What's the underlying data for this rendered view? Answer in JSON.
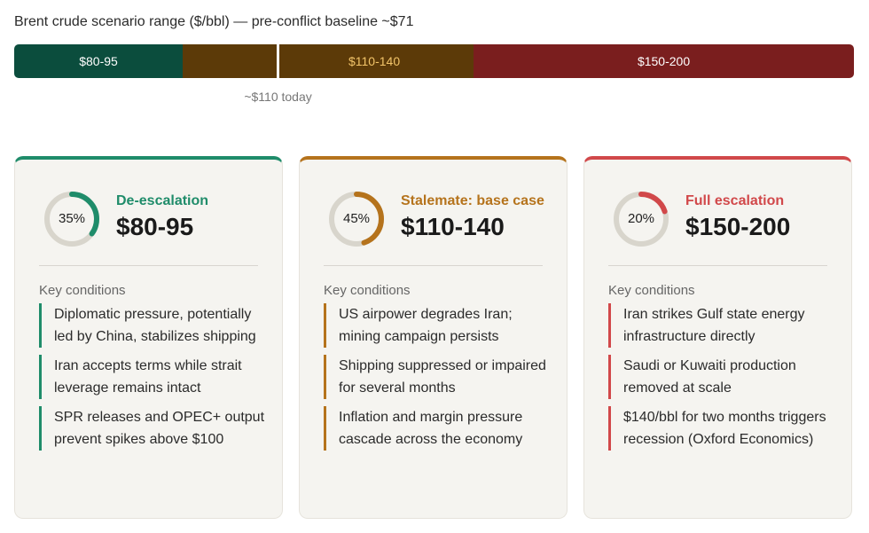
{
  "chart_data": {
    "type": "bar",
    "title": "Brent crude scenario range ($/bbl) — pre-conflict baseline ~$71",
    "segments": [
      {
        "label": "$80-95",
        "color": "#0b4d3d",
        "fraction": 0.2007
      },
      {
        "label": "",
        "color": "#5c3a08",
        "fraction": 0.1098
      },
      {
        "label": "$110-140",
        "color": "#5c3a08",
        "fraction": 0.2366
      },
      {
        "label": "$150-200",
        "color": "#7a1e1e",
        "fraction": 0.4529
      }
    ],
    "today_marker": {
      "label": "~$110 today",
      "fraction": 0.3142
    }
  },
  "conditions_heading": "Key conditions",
  "scenarios": [
    {
      "name": "De-escalation",
      "range": "$80-95",
      "probability": 35,
      "probability_label": "35%",
      "color": "#1f8c6a",
      "conditions": [
        "Diplomatic pressure, potentially led by China, stabilizes shipping",
        "Iran accepts terms while strait leverage remains intact",
        "SPR releases and OPEC+ output prevent spikes above $100"
      ]
    },
    {
      "name": "Stalemate: base case",
      "range": "$110-140",
      "probability": 45,
      "probability_label": "45%",
      "color": "#b5731c",
      "conditions": [
        "US airpower degrades Iran; mining campaign persists",
        "Shipping suppressed or impaired for several months",
        "Inflation and margin pressure cascade across the economy"
      ]
    },
    {
      "name": "Full escalation",
      "range": "$150-200",
      "probability": 20,
      "probability_label": "20%",
      "color": "#d1484a",
      "conditions": [
        "Iran strikes Gulf state energy infrastructure directly",
        "Saudi or Kuwaiti production removed at scale",
        "$140/bbl for two months triggers recession (Oxford Economics)"
      ]
    }
  ]
}
